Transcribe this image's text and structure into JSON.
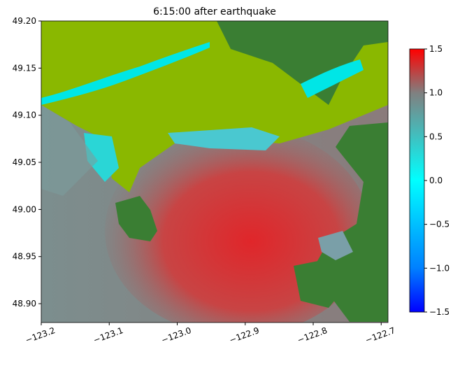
{
  "chart_data": {
    "type": "heatmap",
    "title": "6:15:00 after earthquake",
    "xlim": [
      -123.2,
      -122.69
    ],
    "ylim": [
      48.88,
      49.2
    ],
    "x_ticks": [
      -123.2,
      -123.1,
      -123.0,
      -122.9,
      -122.8,
      -122.7
    ],
    "x_tick_labels": [
      "−123.2",
      "−123.1",
      "−123.0",
      "−122.9",
      "−122.8",
      "−122.7"
    ],
    "y_ticks": [
      48.9,
      48.95,
      49.0,
      49.05,
      49.1,
      49.15,
      49.2
    ],
    "y_tick_labels": [
      "48.90",
      "48.95",
      "49.00",
      "49.05",
      "49.10",
      "49.15",
      "49.20"
    ],
    "colorbar": {
      "range": [
        -1.5,
        1.5
      ],
      "ticks": [
        -1.5,
        -1.0,
        -0.5,
        0.0,
        0.5,
        1.0,
        1.5
      ],
      "tick_labels": [
        "−1.5",
        "−1.0",
        "−0.5",
        "0.0",
        "0.5",
        "1.0",
        "1.5"
      ],
      "colors": [
        "#0000ff",
        "#0080ff",
        "#00ffff",
        "#40c0c0",
        "#808080",
        "#c04040",
        "#ff0000"
      ]
    },
    "land_colors": {
      "lowland": "#8ab800",
      "upland": "#3a7e33",
      "water_gray": "#7f8a8a"
    },
    "grid": false
  }
}
